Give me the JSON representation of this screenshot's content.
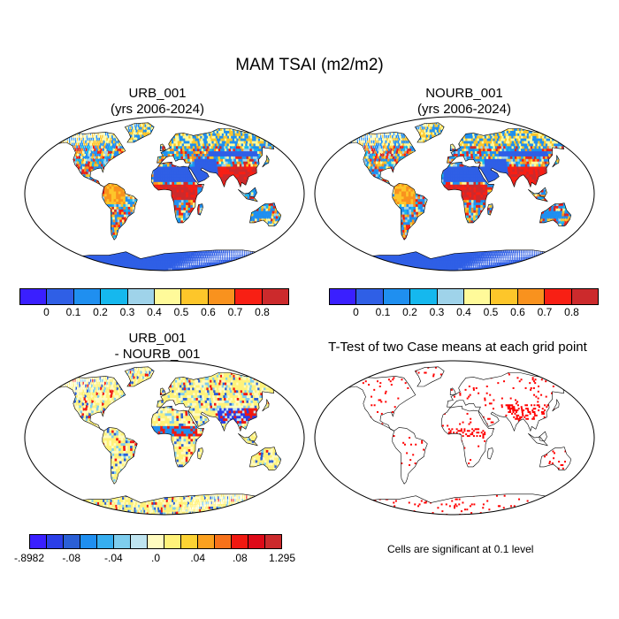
{
  "title": "MAM TSAI (m2/m2)",
  "panels": [
    {
      "id": "urb",
      "title_line1": "URB_001",
      "title_line2": "(yrs 2006-2024)"
    },
    {
      "id": "nourb",
      "title_line1": "NOURB_001",
      "title_line2": "(yrs 2006-2024)"
    },
    {
      "id": "diff",
      "title_line1": "URB_001",
      "title_line2": "- NOURB_001"
    },
    {
      "id": "ttest",
      "title_line1": "T-Test of two Case means at each grid point",
      "title_line2": ""
    }
  ],
  "colorbar_abs": {
    "colors": [
      "#3a1fff",
      "#2f5fe6",
      "#1f8ff0",
      "#15b8ee",
      "#9fd3ea",
      "#fffa9a",
      "#fdc62a",
      "#f9921e",
      "#f81f14",
      "#cc2a2c"
    ],
    "labels": [
      "0",
      "0.1",
      "0.2",
      "0.3",
      "0.4",
      "0.5",
      "0.6",
      "0.7",
      "0.8"
    ]
  },
  "colorbar_diff": {
    "colors": [
      "#3a1fff",
      "#2b3fe8",
      "#2a5fd6",
      "#1f8ff0",
      "#36aef0",
      "#7ecdee",
      "#bfe4f0",
      "#fffbc0",
      "#fff27a",
      "#fcd233",
      "#fba11f",
      "#f7721b",
      "#f01911",
      "#de0a18",
      "#cc2a2c"
    ],
    "labels": [
      "-.8982",
      "-.08",
      "-.04",
      ".0",
      ".04",
      ".08",
      "1.295"
    ]
  },
  "note": "Cells are significant at 0.1 level"
}
